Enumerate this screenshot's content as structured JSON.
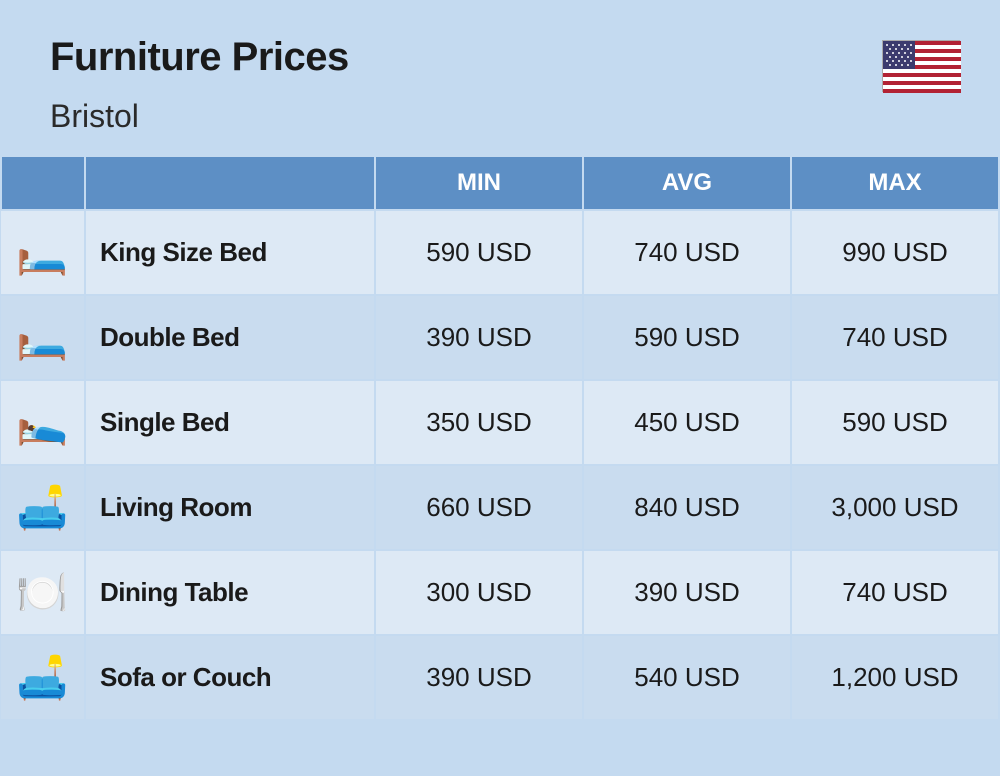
{
  "header": {
    "title": "Furniture Prices",
    "subtitle": "Bristol"
  },
  "table": {
    "columns": {
      "min": "MIN",
      "avg": "AVG",
      "max": "MAX"
    },
    "currency": "USD",
    "rows": [
      {
        "icon": "🛏️",
        "name": "King Size Bed",
        "min": "590 USD",
        "avg": "740 USD",
        "max": "990 USD"
      },
      {
        "icon": "🛏️",
        "name": "Double Bed",
        "min": "390 USD",
        "avg": "590 USD",
        "max": "740 USD"
      },
      {
        "icon": "🛌",
        "name": "Single Bed",
        "min": "350 USD",
        "avg": "450 USD",
        "max": "590 USD"
      },
      {
        "icon": "🛋️",
        "name": "Living Room",
        "min": "660 USD",
        "avg": "840 USD",
        "max": "3,000 USD"
      },
      {
        "icon": "🍽️",
        "name": "Dining Table",
        "min": "300 USD",
        "avg": "390 USD",
        "max": "740 USD"
      },
      {
        "icon": "🛋️",
        "name": "Sofa or Couch",
        "min": "390 USD",
        "avg": "540 USD",
        "max": "1,200 USD"
      }
    ]
  },
  "colors": {
    "page_bg": "#c4daf0",
    "header_bg": "#5d8fc5",
    "row_odd_bg": "#dde9f5",
    "row_even_bg": "#c9dcef",
    "text": "#1a1a1a",
    "header_text": "#ffffff"
  },
  "flag": {
    "country": "United States"
  }
}
